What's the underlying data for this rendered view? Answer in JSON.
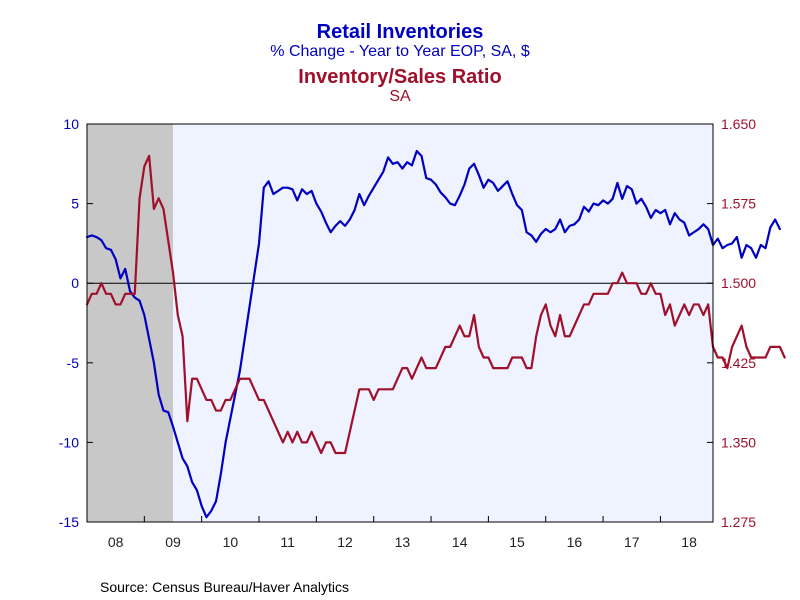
{
  "titles": {
    "primary_title": "Retail Inventories",
    "primary_subtitle": "% Change - Year to Year     EOP, SA, $",
    "secondary_title": "Inventory/Sales Ratio",
    "secondary_subtitle": "SA"
  },
  "source": "Source:  Census Bureau/Haver Analytics",
  "colors": {
    "primary_series": "#0000C0",
    "secondary_series": "#A0102A",
    "plot_background": "#EEF3FF",
    "recession_shade": "#C8C8C8",
    "frame": "#000000"
  },
  "chart_data": {
    "type": "line",
    "title": "Retail Inventories",
    "x_tick_labels": [
      "08",
      "09",
      "10",
      "11",
      "12",
      "13",
      "14",
      "15",
      "16",
      "17",
      "18"
    ],
    "x_range": [
      2008.0,
      2018.917
    ],
    "left_axis": {
      "range": [
        -15,
        10
      ],
      "ticks": [
        10,
        5,
        0,
        -5,
        -10,
        -15
      ],
      "tick_labels": [
        "10",
        "5",
        "0",
        "-5",
        "-10",
        "-15"
      ]
    },
    "right_axis": {
      "range": [
        1.275,
        1.65
      ],
      "ticks": [
        1.65,
        1.575,
        1.5,
        1.425,
        1.35,
        1.275
      ],
      "tick_labels": [
        "1.650",
        "1.575",
        "1.500",
        "1.425",
        "1.350",
        "1.275"
      ]
    },
    "zero_line": 0,
    "recession_shading": [
      [
        2008.0,
        2009.5
      ]
    ],
    "series": [
      {
        "name": "Retail Inventories",
        "axis": "left",
        "start": 2008.0,
        "step_months": 1,
        "values": [
          2.9,
          3.0,
          2.9,
          2.7,
          2.2,
          2.1,
          1.5,
          0.3,
          0.9,
          -0.5,
          -0.9,
          -1.1,
          -2.0,
          -3.5,
          -5.0,
          -7.0,
          -8.0,
          -8.1,
          -9.0,
          -10.0,
          -11.0,
          -11.5,
          -12.5,
          -13.0,
          -14.0,
          -14.7,
          -14.3,
          -13.7,
          -12.0,
          -10.0,
          -8.5,
          -7.0,
          -5.5,
          -3.5,
          -1.5,
          0.5,
          2.5,
          6.0,
          6.4,
          5.6,
          5.8,
          6.0,
          6.0,
          5.9,
          5.2,
          5.9,
          5.6,
          5.8,
          5.0,
          4.5,
          3.8,
          3.2,
          3.6,
          3.9,
          3.6,
          4.0,
          4.6,
          5.6,
          4.9,
          5.5,
          6.0,
          6.5,
          7.0,
          7.9,
          7.5,
          7.6,
          7.2,
          7.6,
          7.4,
          8.3,
          8.0,
          6.6,
          6.5,
          6.2,
          5.7,
          5.4,
          5.0,
          4.9,
          5.5,
          6.2,
          7.2,
          7.5,
          6.8,
          6.0,
          6.5,
          6.3,
          5.8,
          6.1,
          6.4,
          5.6,
          4.9,
          4.6,
          3.2,
          3.0,
          2.6,
          3.1,
          3.4,
          3.2,
          3.4,
          4.0,
          3.2,
          3.6,
          3.7,
          4.0,
          4.8,
          4.5,
          5.0,
          4.9,
          5.2,
          5.0,
          5.3,
          6.3,
          5.3,
          6.1,
          5.9,
          5.0,
          5.3,
          4.8,
          4.1,
          4.6,
          4.4,
          4.6,
          3.7,
          4.4,
          4.0,
          3.8,
          3.0,
          3.2,
          3.4,
          3.7,
          3.4,
          2.4,
          2.8,
          2.2,
          2.4,
          2.5,
          2.9,
          1.6,
          2.4,
          2.2,
          1.6,
          2.4,
          2.2,
          3.5,
          4.0,
          3.4
        ]
      },
      {
        "name": "Inventory/Sales Ratio",
        "axis": "right",
        "start": 2008.0,
        "step_months": 1,
        "values": [
          1.48,
          1.49,
          1.49,
          1.5,
          1.49,
          1.49,
          1.48,
          1.48,
          1.49,
          1.49,
          1.49,
          1.58,
          1.61,
          1.62,
          1.57,
          1.58,
          1.57,
          1.54,
          1.51,
          1.47,
          1.45,
          1.37,
          1.41,
          1.41,
          1.4,
          1.39,
          1.39,
          1.38,
          1.38,
          1.39,
          1.39,
          1.4,
          1.41,
          1.41,
          1.41,
          1.4,
          1.39,
          1.39,
          1.38,
          1.37,
          1.36,
          1.35,
          1.36,
          1.35,
          1.36,
          1.35,
          1.35,
          1.36,
          1.35,
          1.34,
          1.35,
          1.35,
          1.34,
          1.34,
          1.34,
          1.36,
          1.38,
          1.4,
          1.4,
          1.4,
          1.39,
          1.4,
          1.4,
          1.4,
          1.4,
          1.41,
          1.42,
          1.42,
          1.41,
          1.42,
          1.43,
          1.42,
          1.42,
          1.42,
          1.43,
          1.44,
          1.44,
          1.45,
          1.46,
          1.45,
          1.45,
          1.47,
          1.44,
          1.43,
          1.43,
          1.42,
          1.42,
          1.42,
          1.42,
          1.43,
          1.43,
          1.43,
          1.42,
          1.42,
          1.45,
          1.47,
          1.48,
          1.46,
          1.45,
          1.47,
          1.45,
          1.45,
          1.46,
          1.47,
          1.48,
          1.48,
          1.49,
          1.49,
          1.49,
          1.49,
          1.5,
          1.5,
          1.51,
          1.5,
          1.5,
          1.5,
          1.49,
          1.49,
          1.5,
          1.49,
          1.49,
          1.47,
          1.48,
          1.46,
          1.47,
          1.48,
          1.47,
          1.48,
          1.48,
          1.47,
          1.48,
          1.44,
          1.43,
          1.43,
          1.42,
          1.44,
          1.45,
          1.46,
          1.44,
          1.43,
          1.43,
          1.43,
          1.43,
          1.44,
          1.44,
          1.44,
          1.43
        ]
      }
    ]
  }
}
